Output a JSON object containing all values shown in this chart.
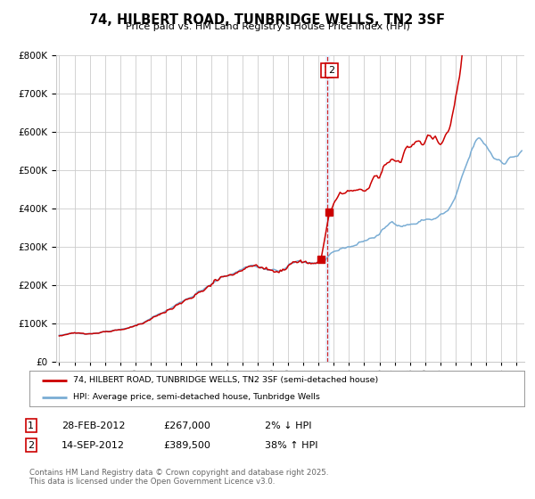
{
  "title": "74, HILBERT ROAD, TUNBRIDGE WELLS, TN2 3SF",
  "subtitle": "Price paid vs. HM Land Registry's House Price Index (HPI)",
  "legend_line1": "74, HILBERT ROAD, TUNBRIDGE WELLS, TN2 3SF (semi-detached house)",
  "legend_line2": "HPI: Average price, semi-detached house, Tunbridge Wells",
  "transaction1_date": "28-FEB-2012",
  "transaction1_price": "£267,000",
  "transaction1_pct": "2% ↓ HPI",
  "transaction2_date": "14-SEP-2012",
  "transaction2_price": "£389,500",
  "transaction2_pct": "38% ↑ HPI",
  "footer": "Contains HM Land Registry data © Crown copyright and database right 2025.\nThis data is licensed under the Open Government Licence v3.0.",
  "red_color": "#cc0000",
  "blue_color": "#7aadd4",
  "vline_x": 2012.6,
  "marker1_x": 2012.17,
  "marker1_y": 267000,
  "marker2_x": 2012.72,
  "marker2_y": 389500,
  "ylim": [
    0,
    800000
  ],
  "xlim": [
    1994.8,
    2025.5
  ],
  "background_color": "#ffffff",
  "grid_color": "#cccccc"
}
